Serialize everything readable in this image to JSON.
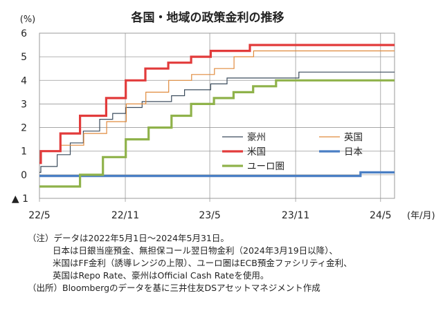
{
  "chart_data": {
    "type": "line",
    "title": "各国・地域の政策金利の推移",
    "ylabel": "(%)",
    "xlabel": "(年/月)",
    "ylim": [
      -1,
      6
    ],
    "yticks": [
      6,
      5,
      4,
      3,
      2,
      1,
      0
    ],
    "ytick_bottom_label": "▲ 1",
    "xlim": [
      "2022-05-01",
      "2024-05-31"
    ],
    "xticks": [
      {
        "date": "2022-05-01",
        "label": "22/5"
      },
      {
        "date": "2022-11-01",
        "label": "22/11"
      },
      {
        "date": "2023-05-01",
        "label": "23/5"
      },
      {
        "date": "2023-11-01",
        "label": "23/11"
      },
      {
        "date": "2024-05-01",
        "label": "24/5"
      }
    ],
    "grid": true,
    "legend_position": "lower-right",
    "series": [
      {
        "name": "豪州",
        "color": "#3a4b5c",
        "width": 1.2,
        "style": "step",
        "points": [
          [
            "2022-05-01",
            0.1
          ],
          [
            "2022-05-04",
            0.35
          ],
          [
            "2022-06-08",
            0.85
          ],
          [
            "2022-07-06",
            1.35
          ],
          [
            "2022-08-03",
            1.85
          ],
          [
            "2022-09-07",
            2.35
          ],
          [
            "2022-10-05",
            2.6
          ],
          [
            "2022-11-02",
            2.85
          ],
          [
            "2022-12-07",
            3.1
          ],
          [
            "2023-02-08",
            3.35
          ],
          [
            "2023-03-08",
            3.6
          ],
          [
            "2023-05-03",
            3.85
          ],
          [
            "2023-06-07",
            4.1
          ],
          [
            "2023-11-08",
            4.35
          ],
          [
            "2024-05-31",
            4.35
          ]
        ]
      },
      {
        "name": "英国",
        "color": "#e08a3c",
        "width": 1.2,
        "style": "step",
        "points": [
          [
            "2022-05-01",
            0.75
          ],
          [
            "2022-05-05",
            1.0
          ],
          [
            "2022-06-16",
            1.25
          ],
          [
            "2022-08-04",
            1.75
          ],
          [
            "2022-09-22",
            2.25
          ],
          [
            "2022-11-03",
            3.0
          ],
          [
            "2022-12-15",
            3.5
          ],
          [
            "2023-02-02",
            4.0
          ],
          [
            "2023-03-23",
            4.25
          ],
          [
            "2023-05-11",
            4.5
          ],
          [
            "2023-06-22",
            5.0
          ],
          [
            "2023-08-03",
            5.25
          ],
          [
            "2024-05-31",
            5.25
          ]
        ]
      },
      {
        "name": "米国",
        "color": "#e23b3b",
        "width": 3.2,
        "style": "step",
        "points": [
          [
            "2022-05-01",
            0.5
          ],
          [
            "2022-05-04",
            1.0
          ],
          [
            "2022-06-15",
            1.75
          ],
          [
            "2022-07-27",
            2.5
          ],
          [
            "2022-09-21",
            3.25
          ],
          [
            "2022-11-02",
            4.0
          ],
          [
            "2022-12-14",
            4.5
          ],
          [
            "2023-02-01",
            4.75
          ],
          [
            "2023-03-22",
            5.0
          ],
          [
            "2023-05-03",
            5.25
          ],
          [
            "2023-07-26",
            5.5
          ],
          [
            "2024-05-31",
            5.5
          ]
        ]
      },
      {
        "name": "日本",
        "color": "#4a7fc4",
        "width": 3.2,
        "style": "step",
        "points": [
          [
            "2022-05-01",
            -0.05
          ],
          [
            "2024-03-19",
            0.1
          ],
          [
            "2024-05-31",
            0.1
          ]
        ]
      },
      {
        "name": "ユーロ圏",
        "color": "#8fb24a",
        "width": 3.2,
        "style": "step",
        "points": [
          [
            "2022-05-01",
            -0.5
          ],
          [
            "2022-07-27",
            0.0
          ],
          [
            "2022-09-14",
            0.75
          ],
          [
            "2022-11-02",
            1.5
          ],
          [
            "2022-12-21",
            2.0
          ],
          [
            "2023-02-08",
            2.5
          ],
          [
            "2023-03-22",
            3.0
          ],
          [
            "2023-05-10",
            3.25
          ],
          [
            "2023-06-21",
            3.5
          ],
          [
            "2023-08-02",
            3.75
          ],
          [
            "2023-09-20",
            4.0
          ],
          [
            "2024-05-31",
            4.0
          ]
        ]
      }
    ]
  },
  "notes": [
    "（注）データは2022年5月1日～2024年5月31日。",
    "日本は日銀当座預金、無担保コール翌日物金利（2024年3月19日以降）、",
    "米国はFF金利（誘導レンジの上限）、ユーロ圏はECB預金ファシリティ金利、",
    "英国はRepo Rate、豪州はOfficial Cash Rateを使用。",
    "（出所）Bloombergのデータを基に三井住友DSアセットマネジメント作成"
  ]
}
